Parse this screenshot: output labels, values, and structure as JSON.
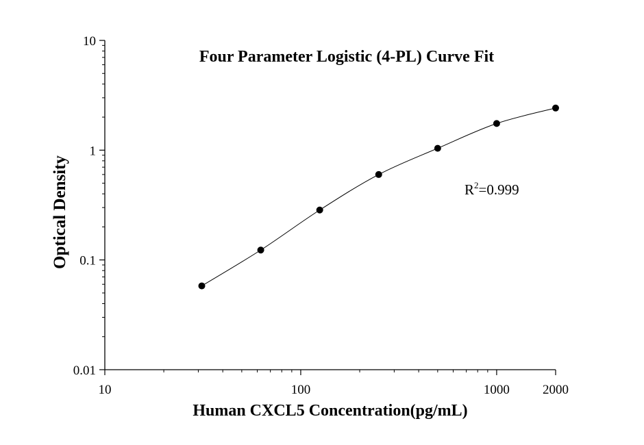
{
  "chart_data": {
    "type": "scatter",
    "title": "Four Parameter Logistic (4-PL) Curve Fit",
    "xlabel": "Human CXCL5 Concentration(pg/mL)",
    "ylabel": "Optical Density",
    "x_scale": "log",
    "y_scale": "log",
    "xlim": [
      10,
      2000
    ],
    "ylim": [
      0.01,
      10
    ],
    "x_ticks": [
      {
        "value": 10,
        "label": "10"
      },
      {
        "value": 100,
        "label": "100"
      },
      {
        "value": 1000,
        "label": "1000"
      },
      {
        "value": 2000,
        "label": "2000"
      }
    ],
    "y_ticks": [
      {
        "value": 0.01,
        "label": "0.01"
      },
      {
        "value": 0.1,
        "label": "0.1"
      },
      {
        "value": 1,
        "label": "1"
      },
      {
        "value": 10,
        "label": "10"
      }
    ],
    "grid": false,
    "series": [
      {
        "x": [
          31.25,
          62.5,
          125,
          250,
          500,
          1000,
          2000
        ],
        "y": [
          0.058,
          0.123,
          0.285,
          0.6,
          1.04,
          1.75,
          2.42
        ]
      }
    ],
    "fit_curve": "4-PL",
    "annotation": {
      "base": "R",
      "sup": "2",
      "rest": "=0.999"
    },
    "colors": {
      "axis": "#000000",
      "points": "#000000",
      "curve": "#000000"
    }
  }
}
